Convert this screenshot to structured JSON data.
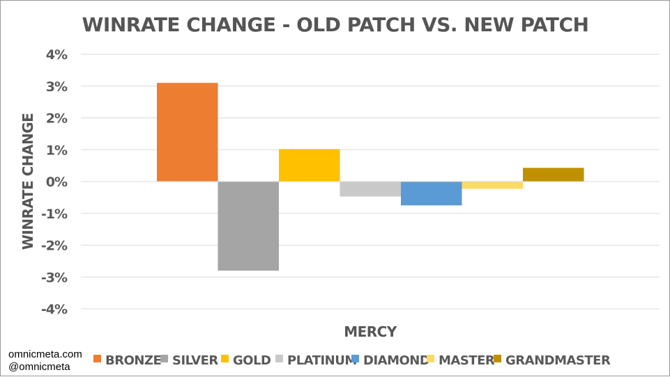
{
  "chart_data": {
    "type": "bar",
    "title": "WINRATE CHANGE - OLD PATCH VS. NEW PATCH",
    "xlabel": "MERCY",
    "ylabel": "WINRATE CHANGE",
    "categories": [
      "MERCY"
    ],
    "ylim": [
      -4,
      4
    ],
    "yticks": [
      "4%",
      "3%",
      "2%",
      "1%",
      "0%",
      "-1%",
      "-2%",
      "-3%",
      "-4%"
    ],
    "ytick_values": [
      4,
      3,
      2,
      1,
      0,
      -1,
      -2,
      -3,
      -4
    ],
    "grid": true,
    "legend_position": "bottom",
    "series": [
      {
        "name": "BRONZE",
        "values": [
          3.1
        ],
        "color": "#ED7D31"
      },
      {
        "name": "SILVER",
        "values": [
          -2.8
        ],
        "color": "#A5A5A5"
      },
      {
        "name": "GOLD",
        "values": [
          1.02
        ],
        "color": "#FFC000"
      },
      {
        "name": "PLATINUM",
        "values": [
          -0.47
        ],
        "color": "#C9C9C9"
      },
      {
        "name": "DIAMOND",
        "values": [
          -0.75
        ],
        "color": "#5B9BD5"
      },
      {
        "name": "MASTER",
        "values": [
          -0.23
        ],
        "color": "#FFD966"
      },
      {
        "name": "GRANDMASTER",
        "values": [
          0.43
        ],
        "color": "#BF9000"
      }
    ]
  },
  "credits": {
    "site": "omnicmeta.com",
    "handle": "@omnicmeta"
  }
}
